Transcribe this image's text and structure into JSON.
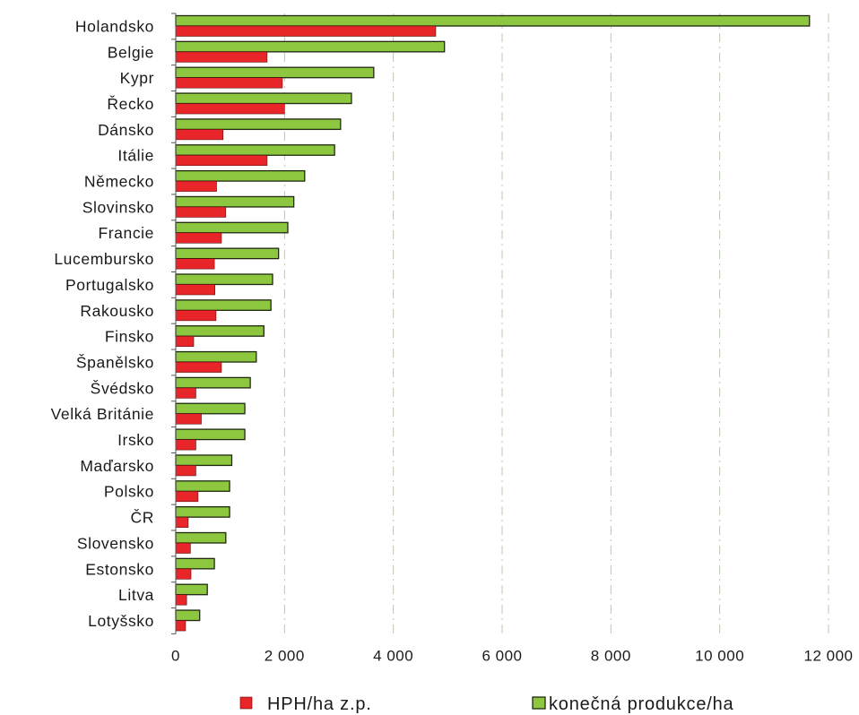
{
  "chart_data": {
    "type": "bar",
    "orientation": "horizontal",
    "categories": [
      "Holandsko",
      "Belgie",
      "Kypr",
      "Řecko",
      "Dánsko",
      "Itálie",
      "Německo",
      "Slovinsko",
      "Francie",
      "Lucembursko",
      "Portugalsko",
      "Rakousko",
      "Finsko",
      "Španělsko",
      "Švédsko",
      "Velká Británie",
      "Irsko",
      "Maďarsko",
      "Polsko",
      "ČR",
      "Slovensko",
      "Estonsko",
      "Litva",
      "Lotyšsko"
    ],
    "series": [
      {
        "name": "HPH/ha z.p.",
        "color": "#e8262a",
        "values": [
          4780,
          1680,
          1960,
          2000,
          870,
          1680,
          750,
          920,
          840,
          710,
          720,
          740,
          330,
          840,
          370,
          470,
          370,
          370,
          410,
          230,
          270,
          280,
          200,
          180
        ]
      },
      {
        "name": "konečná produkce/ha",
        "color": "#8dc63f",
        "values": [
          11650,
          4940,
          3640,
          3230,
          3030,
          2920,
          2370,
          2170,
          2060,
          1890,
          1780,
          1750,
          1620,
          1480,
          1370,
          1270,
          1270,
          1030,
          990,
          990,
          920,
          710,
          580,
          440
        ]
      }
    ],
    "xlim": [
      0,
      12000
    ],
    "xticks": [
      0,
      2000,
      4000,
      6000,
      8000,
      10000,
      12000
    ],
    "xtick_labels": [
      "0",
      "2 000",
      "4 000",
      "6 000",
      "8 000",
      "10 000",
      "12 000"
    ],
    "grid": "vertical dashed",
    "legend_position": "bottom"
  }
}
